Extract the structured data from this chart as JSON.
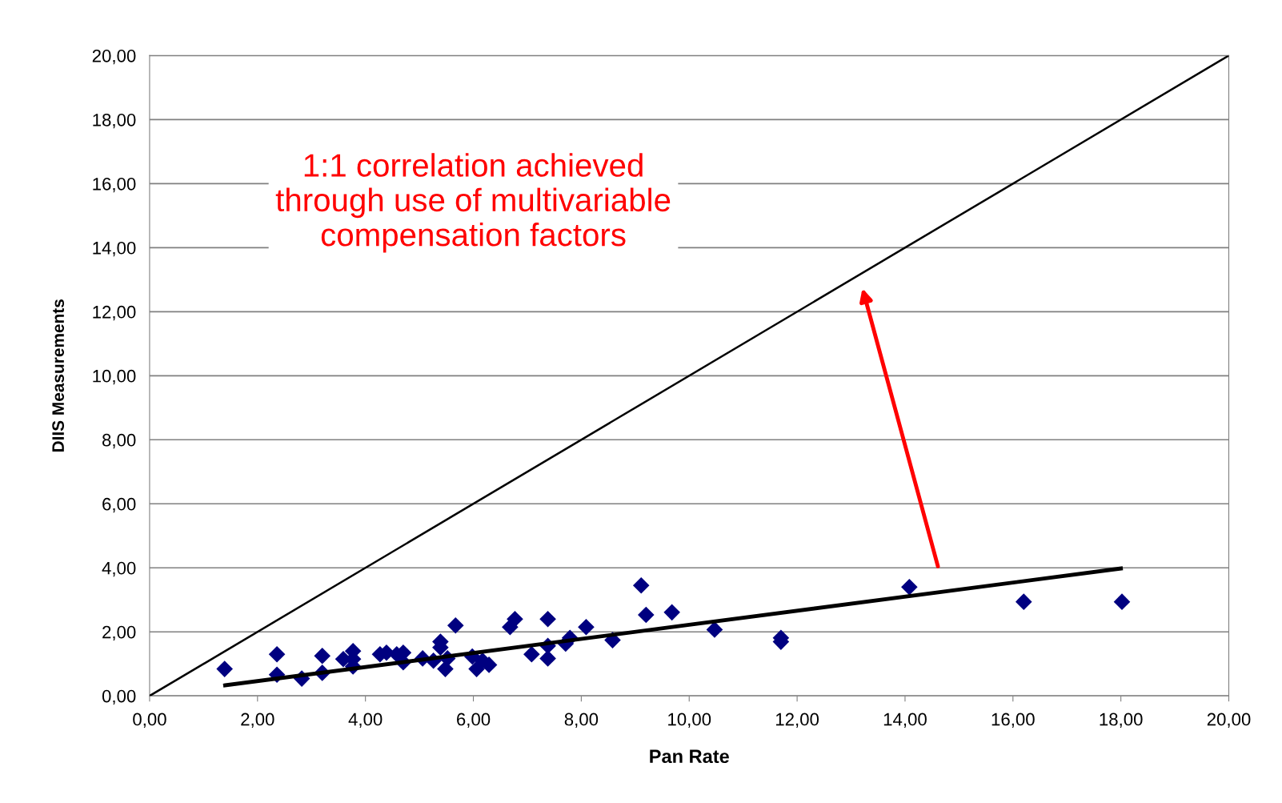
{
  "chart_data": {
    "type": "scatter",
    "xlabel": "Pan Rate",
    "ylabel": "DIIS Measurements",
    "series": [
      {
        "color": "#000080",
        "marker": "diamond",
        "x": [
          1.39,
          2.36,
          2.36,
          2.82,
          3.2,
          3.2,
          3.59,
          3.77,
          3.77,
          3.77,
          4.27,
          4.39,
          4.58,
          4.7,
          4.7,
          5.06,
          5.26,
          5.39,
          5.39,
          5.48,
          5.52,
          5.67,
          5.98,
          6.06,
          6.17,
          6.29,
          6.68,
          6.77,
          7.08,
          7.38,
          7.38,
          7.38,
          7.71,
          7.79,
          8.09,
          8.58,
          9.11,
          9.2,
          9.68,
          10.47,
          11.7,
          11.7,
          14.08,
          16.2,
          18.02
        ],
        "values": [
          0.84,
          1.3,
          0.66,
          0.54,
          1.25,
          0.72,
          1.15,
          1.4,
          1.15,
          0.92,
          1.3,
          1.35,
          1.3,
          1.35,
          1.05,
          1.17,
          1.1,
          1.69,
          1.51,
          0.84,
          1.17,
          2.2,
          1.23,
          0.84,
          1.1,
          0.97,
          2.15,
          2.4,
          1.3,
          2.4,
          1.56,
          1.17,
          1.63,
          1.81,
          2.15,
          1.74,
          3.45,
          2.53,
          2.61,
          2.07,
          1.81,
          1.69,
          3.4,
          2.94,
          2.94
        ]
      },
      {
        "type": "line",
        "color": "#000000",
        "marker": "none",
        "x": [
          1.4,
          10.0,
          18.0
        ],
        "values": [
          0.33,
          2.22,
          3.98
        ]
      },
      {
        "type": "line",
        "color": "#000000",
        "marker": "none",
        "x": [
          0,
          20
        ],
        "values": [
          0,
          20
        ]
      }
    ],
    "xlim": [
      0,
      20
    ],
    "ylim": [
      0,
      20
    ],
    "xticks": [
      {
        "value": 0,
        "label": "0,00"
      },
      {
        "value": 2,
        "label": "2,00"
      },
      {
        "value": 4,
        "label": "4,00"
      },
      {
        "value": 6,
        "label": "6,00"
      },
      {
        "value": 8,
        "label": "8,00"
      },
      {
        "value": 10,
        "label": "10,00"
      },
      {
        "value": 12,
        "label": "12,00"
      },
      {
        "value": 14,
        "label": "14,00"
      },
      {
        "value": 16,
        "label": "16,00"
      },
      {
        "value": 18,
        "label": "18,00"
      },
      {
        "value": 20,
        "label": "20,00"
      }
    ],
    "yticks": [
      {
        "value": 0,
        "label": "0,00"
      },
      {
        "value": 2,
        "label": "2,00"
      },
      {
        "value": 4,
        "label": "4,00"
      },
      {
        "value": 6,
        "label": "6,00"
      },
      {
        "value": 8,
        "label": "8,00"
      },
      {
        "value": 10,
        "label": "10,00"
      },
      {
        "value": 12,
        "label": "12,00"
      },
      {
        "value": 14,
        "label": "14,00"
      },
      {
        "value": 16,
        "label": "16,00"
      },
      {
        "value": 18,
        "label": "18,00"
      },
      {
        "value": 20,
        "label": "20,00"
      }
    ],
    "grid": "y",
    "annotations": [
      "1:1 correlation achieved\nthrough use of multivariable\ncompensation factors"
    ]
  }
}
